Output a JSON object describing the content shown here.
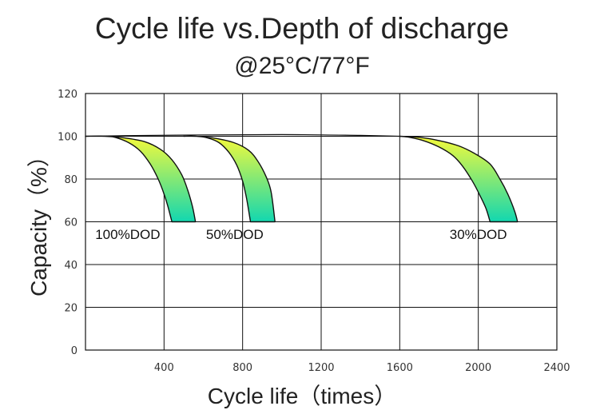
{
  "chart_data": {
    "type": "area",
    "title": "Cycle life vs.Depth of discharge",
    "subtitle": "@25°C/77°F",
    "xlabel": "Cycle life（times）",
    "ylabel": "Capacity（%）",
    "xlim": [
      0,
      2400
    ],
    "ylim": [
      0,
      120
    ],
    "x_ticks": [
      400,
      800,
      1200,
      1600,
      2000,
      2400
    ],
    "y_ticks": [
      0,
      20,
      40,
      60,
      80,
      100,
      120
    ],
    "grid": true,
    "gradient_colors": [
      "#f5fa3a",
      "#12d7b0"
    ],
    "baseline": [
      [
        0,
        100
      ],
      [
        200,
        100.3
      ],
      [
        600,
        100.6
      ],
      [
        1000,
        100.8
      ],
      [
        1400,
        100.4
      ],
      [
        1600,
        100
      ]
    ],
    "series": [
      {
        "name": "100%DOD",
        "label": "100%DOD",
        "label_at": [
          215,
          52
        ],
        "upper": [
          [
            0,
            100
          ],
          [
            100,
            100
          ],
          [
            200,
            99.2
          ],
          [
            300,
            97.5
          ],
          [
            380,
            94
          ],
          [
            440,
            89
          ],
          [
            490,
            82
          ],
          [
            520,
            75
          ],
          [
            545,
            67
          ],
          [
            560,
            60
          ]
        ],
        "lower": [
          [
            0,
            100
          ],
          [
            100,
            100
          ],
          [
            150,
            99.5
          ],
          [
            220,
            97
          ],
          [
            280,
            93
          ],
          [
            330,
            87
          ],
          [
            370,
            80
          ],
          [
            400,
            73
          ],
          [
            420,
            67
          ],
          [
            440,
            60
          ]
        ]
      },
      {
        "name": "50%DOD",
        "label": "50%DOD",
        "label_at": [
          760,
          52
        ],
        "upper": [
          [
            500,
            100
          ],
          [
            560,
            100
          ],
          [
            650,
            99.2
          ],
          [
            750,
            97.2
          ],
          [
            830,
            93.5
          ],
          [
            880,
            88
          ],
          [
            920,
            81
          ],
          [
            945,
            74
          ],
          [
            965,
            60
          ]
        ],
        "lower": [
          [
            500,
            100
          ],
          [
            560,
            100
          ],
          [
            620,
            99.3
          ],
          [
            680,
            97
          ],
          [
            730,
            92.5
          ],
          [
            770,
            86.5
          ],
          [
            800,
            79
          ],
          [
            820,
            71
          ],
          [
            840,
            60
          ]
        ]
      },
      {
        "name": "30%DOD",
        "label": "30%DOD",
        "label_at": [
          2000,
          52
        ],
        "upper": [
          [
            1600,
            100
          ],
          [
            1700,
            99.5
          ],
          [
            1800,
            98
          ],
          [
            1900,
            95.5
          ],
          [
            1980,
            92
          ],
          [
            2060,
            87
          ],
          [
            2110,
            80
          ],
          [
            2150,
            73
          ],
          [
            2185,
            65
          ],
          [
            2200,
            60
          ]
        ],
        "lower": [
          [
            1600,
            100
          ],
          [
            1650,
            99.5
          ],
          [
            1720,
            98
          ],
          [
            1800,
            95
          ],
          [
            1870,
            91
          ],
          [
            1920,
            86
          ],
          [
            1970,
            79
          ],
          [
            2010,
            72
          ],
          [
            2040,
            66
          ],
          [
            2060,
            60
          ]
        ]
      }
    ]
  }
}
